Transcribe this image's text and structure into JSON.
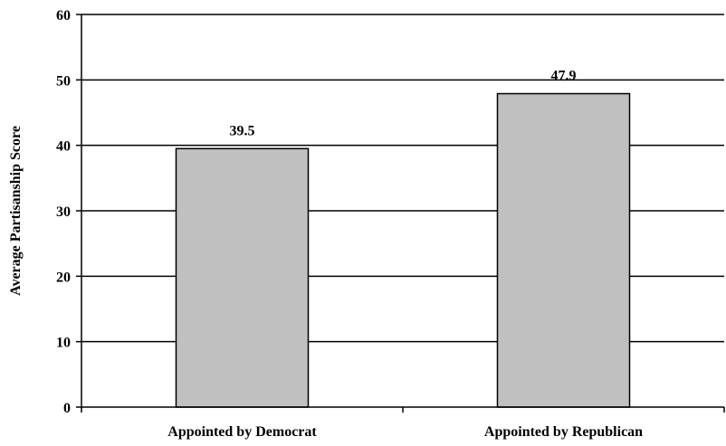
{
  "chart_data": {
    "type": "bar",
    "title": "",
    "xlabel": "",
    "ylabel": "Average Partisanship Score",
    "categories": [
      "Appointed by Democrat",
      "Appointed by Republican"
    ],
    "values": [
      39.5,
      47.9
    ],
    "data_labels": [
      "39.5",
      "47.9"
    ],
    "ylim": [
      0,
      60
    ],
    "yticks": [
      0,
      10,
      20,
      30,
      40,
      50,
      60
    ],
    "grid": true,
    "legend": "none",
    "colors": {
      "bar_fill": "#c0c0c0",
      "bar_stroke": "#000000",
      "grid": "#000000"
    }
  }
}
